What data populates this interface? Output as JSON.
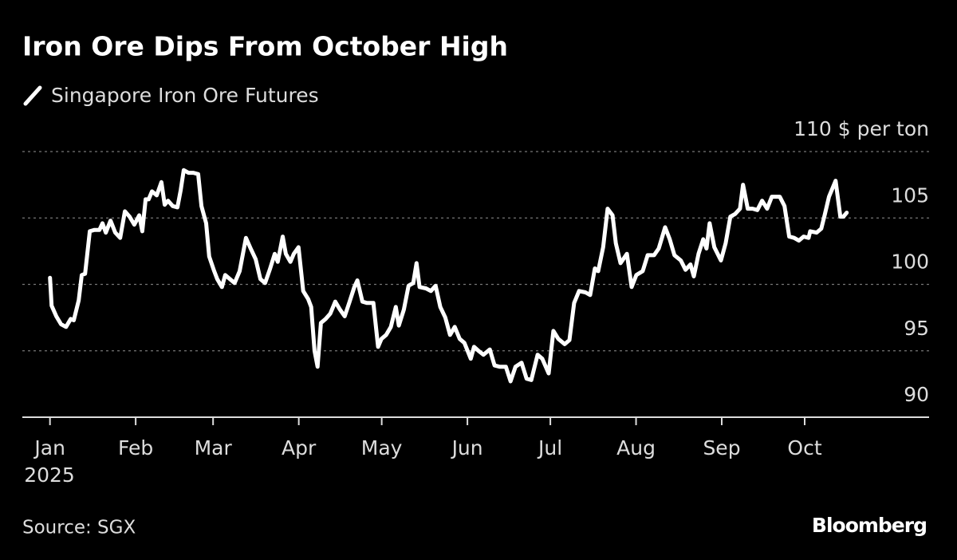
{
  "chart_data": {
    "type": "line",
    "title": "Iron Ore Dips From October High",
    "source": "Source: SGX",
    "brand": "Bloomberg",
    "x_sublabel": "2025",
    "xlim": [
      -10,
      318
    ],
    "xticks": [
      {
        "value": 0,
        "label": "Jan"
      },
      {
        "value": 31,
        "label": "Feb"
      },
      {
        "value": 59,
        "label": "Mar"
      },
      {
        "value": 90,
        "label": "Apr"
      },
      {
        "value": 120,
        "label": "May"
      },
      {
        "value": 151,
        "label": "Jun"
      },
      {
        "value": 181,
        "label": "Jul"
      },
      {
        "value": 212,
        "label": "Aug"
      },
      {
        "value": 243,
        "label": "Sep"
      },
      {
        "value": 273,
        "label": "Oct"
      }
    ],
    "ylim": [
      90,
      110
    ],
    "yticks": [
      90,
      95,
      100,
      105,
      {
        "value": 110,
        "label": "110 $ per ton"
      }
    ],
    "grid": true,
    "x": [
      0,
      0.6,
      2.3,
      4,
      5.8,
      7.5,
      8.6,
      10.4,
      11.5,
      12.7,
      14.4,
      16.1,
      17.9,
      19,
      20.2,
      21.9,
      23.6,
      25.4,
      27.1,
      28.8,
      30.5,
      32.3,
      33.4,
      34.6,
      35.7,
      36.9,
      38.6,
      40.3,
      41.5,
      42.7,
      44.4,
      46.1,
      47.3,
      48.4,
      50.1,
      51.9,
      53.6,
      54.8,
      56.5,
      57.6,
      59.4,
      60.5,
      62.2,
      63.4,
      65.1,
      66.8,
      68.6,
      70.9,
      72.6,
      74.4,
      76.1,
      77.8,
      79.5,
      81.3,
      82.4,
      84.2,
      85.3,
      87,
      88.2,
      89.9,
      91.6,
      93.4,
      94.5,
      95.7,
      96.8,
      98,
      99.7,
      101.4,
      103.2,
      104.9,
      106.6,
      108.4,
      110.1,
      111.2,
      113,
      114.7,
      117,
      118.7,
      119.9,
      121.6,
      123.3,
      125.1,
      126.2,
      128,
      129.7,
      131.4,
      132.6,
      133.7,
      136,
      137.8,
      139.5,
      141.2,
      143,
      144.7,
      146.4,
      148.2,
      149.9,
      152.2,
      153.4,
      155,
      156.8,
      159.1,
      160.8,
      162.6,
      164.9,
      166.6,
      168.4,
      170.6,
      172.4,
      174.1,
      176.4,
      178.1,
      180.4,
      182.1,
      183.9,
      186.2,
      187.9,
      189.6,
      191.4,
      193.7,
      195.4,
      197.1,
      198.3,
      200.1,
      201.7,
      203.5,
      204.7,
      206.4,
      208.7,
      210.4,
      212.1,
      214.4,
      216.2,
      218.5,
      220.2,
      222.5,
      224.2,
      225.9,
      228.2,
      229.9,
      231.7,
      232.9,
      234.6,
      236.3,
      237.5,
      238.6,
      240.3,
      242.7,
      244.4,
      246.1,
      247.8,
      249.6,
      250.7,
      252.4,
      254.2,
      255.9,
      257.6,
      259.4,
      261.1,
      264,
      265.7,
      267.4,
      269.2,
      270.9,
      272.6,
      274.4,
      275,
      277.3,
      279,
      280.2,
      281.8,
      284.2,
      285.9,
      287,
      288.2
    ],
    "series": [
      {
        "name": "Singapore Iron Ore Futures",
        "color": "#ffffff",
        "values": [
          100.5,
          98.4,
          97.6,
          97.0,
          96.8,
          97.4,
          97.3,
          98.8,
          100.7,
          100.8,
          104.0,
          104.1,
          104.1,
          104.6,
          103.9,
          104.8,
          103.9,
          103.5,
          105.5,
          105.1,
          104.5,
          105.2,
          104.0,
          106.4,
          106.4,
          107.0,
          106.7,
          107.7,
          106.0,
          106.3,
          105.9,
          105.8,
          107.1,
          108.6,
          108.4,
          108.4,
          108.3,
          105.9,
          104.6,
          102.1,
          101.0,
          100.4,
          99.8,
          100.7,
          100.4,
          100.1,
          101.0,
          103.5,
          102.7,
          101.9,
          100.4,
          100.1,
          101.1,
          102.3,
          101.7,
          103.6,
          102.3,
          101.7,
          102.3,
          102.8,
          99.5,
          98.9,
          98.3,
          95.0,
          93.8,
          97.1,
          97.4,
          97.8,
          98.7,
          98.1,
          97.6,
          98.7,
          99.8,
          100.3,
          98.7,
          98.6,
          98.6,
          95.3,
          95.9,
          96.2,
          96.8,
          98.3,
          96.9,
          98.1,
          99.9,
          100.1,
          101.6,
          99.8,
          99.7,
          99.5,
          99.9,
          98.3,
          97.5,
          96.2,
          96.8,
          95.9,
          95.6,
          94.4,
          95.3,
          95.0,
          94.7,
          95.1,
          93.9,
          93.8,
          93.8,
          92.7,
          93.8,
          94.1,
          92.9,
          92.8,
          94.7,
          94.4,
          93.3,
          96.5,
          95.9,
          95.5,
          95.8,
          98.6,
          99.5,
          99.4,
          99.2,
          101.2,
          101.0,
          102.8,
          105.7,
          105.2,
          103.1,
          101.6,
          102.3,
          99.8,
          100.7,
          101.0,
          102.2,
          102.2,
          102.7,
          104.3,
          103.4,
          102.2,
          101.8,
          101.1,
          101.5,
          100.6,
          102.3,
          103.4,
          102.7,
          104.6,
          102.8,
          101.8,
          103.1,
          105.1,
          105.3,
          105.7,
          107.5,
          105.7,
          105.7,
          105.6,
          106.3,
          105.7,
          106.6,
          106.6,
          105.9,
          103.6,
          103.5,
          103.3,
          103.6,
          103.5,
          104.0,
          103.9,
          104.2,
          105.2,
          106.6,
          107.8,
          105.1,
          105.1,
          105.4
        ]
      }
    ]
  }
}
